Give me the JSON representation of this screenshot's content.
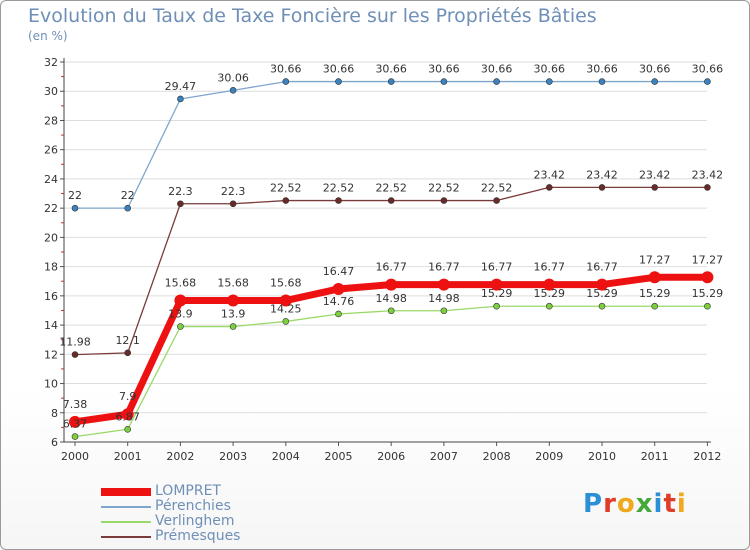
{
  "title": "Evolution du Taux de Taxe Foncière sur les Propriétés Bâties",
  "unit": "(en %)",
  "logo": {
    "text": "Proxiti",
    "colors": [
      "#2a8fd6",
      "#e03c2a",
      "#f0a81c",
      "#46a83a",
      "#2a8fd6",
      "#e03c2a",
      "#f0a81c"
    ]
  },
  "chart_data": {
    "type": "line",
    "title": "Evolution du Taux de Taxe Foncière sur les Propriétés Bâties",
    "ylabel": "(en %)",
    "xlabel": "",
    "categories": [
      "2000",
      "2001",
      "2002",
      "2003",
      "2004",
      "2005",
      "2006",
      "2007",
      "2008",
      "2009",
      "2010",
      "2011",
      "2012"
    ],
    "ylim": [
      6,
      32
    ],
    "yticks": [
      6,
      8,
      10,
      12,
      14,
      16,
      18,
      20,
      22,
      24,
      26,
      28,
      30,
      32
    ],
    "grid": "horizontal",
    "legend": "bottom-left",
    "series": [
      {
        "name": "LOMPRET",
        "color": "#ee1111",
        "marker": "#ee1111",
        "thick": true,
        "values": [
          7.38,
          7.9,
          15.68,
          15.68,
          15.68,
          16.47,
          16.77,
          16.77,
          16.77,
          16.77,
          16.77,
          17.27,
          17.27
        ],
        "labels": [
          "7.38",
          "7.9",
          "15.68",
          "15.68",
          "15.68",
          "16.47",
          "16.77",
          "16.77",
          "16.77",
          "16.77",
          "16.77",
          "17.27",
          "17.27"
        ]
      },
      {
        "name": "Pérenchies",
        "color": "#7ea6cc",
        "marker": "#3b82c0",
        "thick": false,
        "values": [
          22,
          22,
          29.47,
          30.06,
          30.66,
          30.66,
          30.66,
          30.66,
          30.66,
          30.66,
          30.66,
          30.66,
          30.66
        ],
        "labels": [
          "22",
          "22",
          "29.47",
          "30.06",
          "30.66",
          "30.66",
          "30.66",
          "30.66",
          "30.66",
          "30.66",
          "30.66",
          "30.66",
          "30.66"
        ]
      },
      {
        "name": "Verlinghem",
        "color": "#99d96a",
        "marker": "#7ccf3d",
        "thick": false,
        "values": [
          6.37,
          6.87,
          13.9,
          13.9,
          14.25,
          14.76,
          14.98,
          14.98,
          15.29,
          15.29,
          15.29,
          15.29,
          15.29
        ],
        "labels": [
          "6.37",
          "6.87",
          "13.9",
          "13.9",
          "14.25",
          "14.76",
          "14.98",
          "14.98",
          "15.29",
          "15.29",
          "15.29",
          "15.29",
          "15.29"
        ]
      },
      {
        "name": "Prémesques",
        "color": "#7a3b3b",
        "marker": "#6b2a2a",
        "thick": false,
        "values": [
          11.98,
          12.1,
          22.3,
          22.3,
          22.52,
          22.52,
          22.52,
          22.52,
          22.52,
          23.42,
          23.42,
          23.42,
          23.42
        ],
        "labels": [
          "11.98",
          "12.1",
          "22.3",
          "22.3",
          "22.52",
          "22.52",
          "22.52",
          "22.52",
          "22.52",
          "23.42",
          "23.42",
          "23.42",
          "23.42"
        ]
      }
    ]
  }
}
